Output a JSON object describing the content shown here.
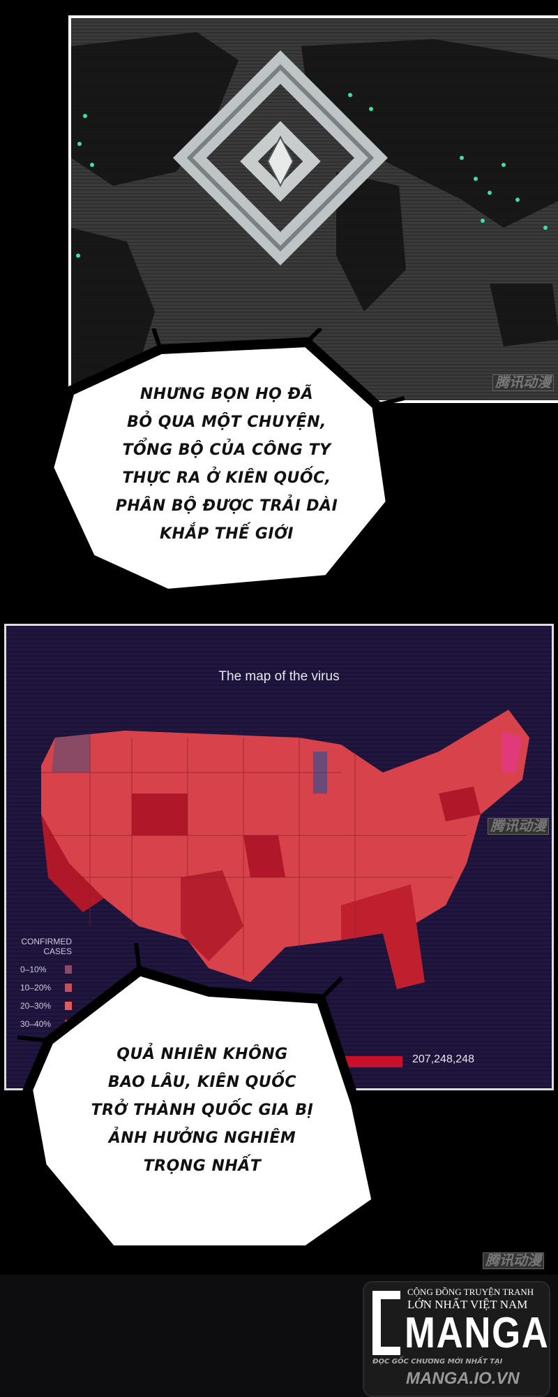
{
  "panel1": {
    "bubble_lines": [
      "NHƯNG BỌN HỌ ĐÃ",
      "BỎ QUA MỘT CHUYỆN,",
      "TỔNG BỘ CỦA CÔNG TY",
      "THỰC RA Ở KIÊN QUỐC,",
      "PHÂN BỘ ĐƯỢC TRẢI DÀI",
      "KHẮP THẾ GIỚI"
    ],
    "watermark": "腾讯动漫",
    "map_dot_color": "#3fe0a0"
  },
  "panel2": {
    "map_title": "The map of the virus",
    "legend": {
      "title_line1": "CONFIRMED",
      "title_line2": "CASES",
      "items": [
        {
          "label": "0–10%",
          "color": "#8a4a66"
        },
        {
          "label": "10–20%",
          "color": "#c24e5e"
        },
        {
          "label": "20–30%",
          "color": "#e85a5a"
        },
        {
          "label": "30–40%",
          "color": "#e03a3a"
        }
      ]
    },
    "total_cases": "207,248,248",
    "watermark": "腾讯动漫",
    "bubble_lines": [
      "QUẢ NHIÊN KHÔNG",
      "BAO LÂU, KIÊN QUỐC",
      "TRỞ THÀNH QUỐC GIA BỊ",
      "ẢNH HƯỞNG NGHIÊM",
      "TRỌNG NHẤT"
    ]
  },
  "footer": {
    "watermark": "腾讯动漫",
    "logo_tagline1": "CỘNG ĐỒNG TRUYỆN TRANH",
    "logo_tagline2": "LỚN NHẤT VIỆT NAM",
    "logo_name": "MANGA",
    "logo_overlay1": "ĐỌC GỐC CHƯƠNG MỚI NHẤT TẠI",
    "logo_overlay2": "MANGA.IO.VN"
  }
}
